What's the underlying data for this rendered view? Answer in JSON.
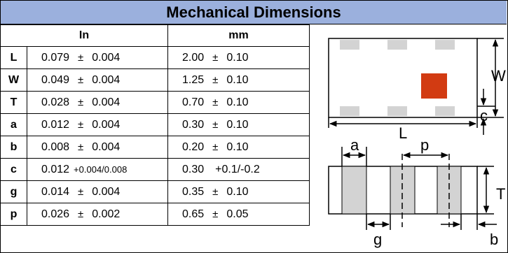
{
  "title": "Mechanical Dimensions",
  "headers": {
    "in": "In",
    "mm": "mm"
  },
  "pm_symbol": "±",
  "rows": [
    {
      "sym": "L",
      "in_val": "0.079",
      "in_tol": "0.004",
      "mm_val": "2.00",
      "mm_tol": "0.10"
    },
    {
      "sym": "W",
      "in_val": "0.049",
      "in_tol": "0.004",
      "mm_val": "1.25",
      "mm_tol": "0.10"
    },
    {
      "sym": "T",
      "in_val": "0.028",
      "in_tol": "0.004",
      "mm_val": "0.70",
      "mm_tol": "0.10"
    },
    {
      "sym": "a",
      "in_val": "0.012",
      "in_tol": "0.004",
      "mm_val": "0.30",
      "mm_tol": "0.10"
    },
    {
      "sym": "b",
      "in_val": "0.008",
      "in_tol": "0.004",
      "mm_val": "0.20",
      "mm_tol": "0.10"
    },
    {
      "sym": "c",
      "in_val": "0.012",
      "in_tol_asym": "+0.004/0.008",
      "mm_val": "0.30",
      "mm_tol_asym": "+0.1/-0.2"
    },
    {
      "sym": "g",
      "in_val": "0.014",
      "in_tol": "0.004",
      "mm_val": "0.35",
      "mm_tol": "0.10"
    },
    {
      "sym": "p",
      "in_val": "0.026",
      "in_tol": "0.002",
      "mm_val": "0.65",
      "mm_tol": "0.05"
    }
  ],
  "drawing_labels": {
    "W": "W",
    "c": "c",
    "L": "L",
    "a": "a",
    "p": "p",
    "T": "T",
    "g": "g",
    "b": "b"
  },
  "colors": {
    "title_bg": "#9bb0dd",
    "pad": "#d3d3d3",
    "marker": "#d23b12"
  }
}
